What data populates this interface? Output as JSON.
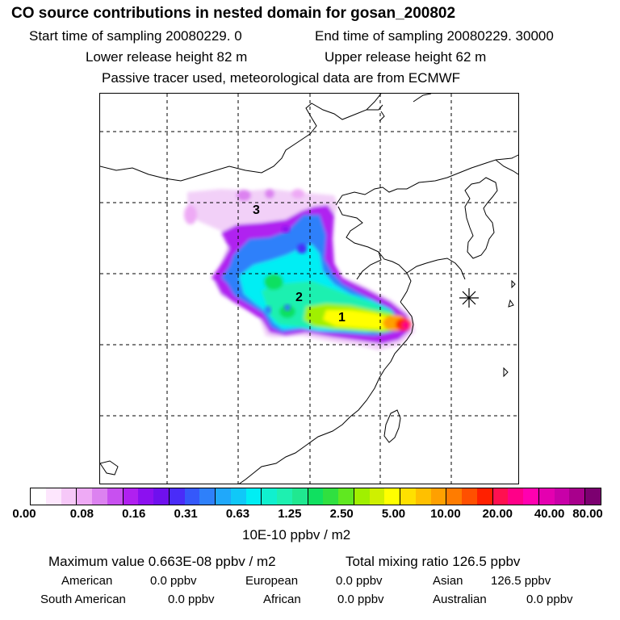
{
  "header": {
    "title": "CO  source contributions in nested domain for gosan_200802",
    "start_time": "Start time of sampling 20080229.     0",
    "end_time": "End time of sampling 20080229. 30000",
    "lower_release": "Lower release height   82 m",
    "upper_release": "Upper release height   62 m",
    "tracer_note": "Passive tracer used, meteorological data are from ECMWF"
  },
  "map": {
    "source_labels": [
      "1",
      "2",
      "3"
    ],
    "receptor_marker": "asterisk"
  },
  "colorbar": {
    "colors": [
      "#ffffff",
      "#fde6fd",
      "#f6c8f8",
      "#eeaaf5",
      "#dc82f0",
      "#c850f0",
      "#b020f0",
      "#8c10f0",
      "#6f10ee",
      "#4a2cf8",
      "#3558fa",
      "#2e80fa",
      "#20a8fa",
      "#10c8f8",
      "#00eef4",
      "#10f0cf",
      "#1ef0b0",
      "#20e890",
      "#10e060",
      "#30e040",
      "#60e820",
      "#a0f000",
      "#cff000",
      "#ffff00",
      "#ffe000",
      "#ffc000",
      "#ffa000",
      "#ff7c00",
      "#ff5000",
      "#ff2000",
      "#ff1050",
      "#ff0088",
      "#ff00b0",
      "#e400b0",
      "#c800a8",
      "#a8008c",
      "#7c0070"
    ],
    "tick_labels": [
      "0.00",
      "0.08",
      "0.16",
      "0.31",
      "0.63",
      "1.25",
      "2.50",
      "5.00",
      "10.00",
      "20.00",
      "40.00",
      "80.00"
    ],
    "units": "10E-10 ppbv / m2"
  },
  "summary": {
    "max_value": "Maximum value  0.663E-08 ppbv / m2",
    "total_mixing": "Total mixing ratio      126.5 ppbv",
    "regions": [
      {
        "name": "American",
        "value": "0.0 ppbv"
      },
      {
        "name": "European",
        "value": "0.0 ppbv"
      },
      {
        "name": "Asian",
        "value": "126.5 ppbv"
      },
      {
        "name": "South American",
        "value": "0.0 ppbv"
      },
      {
        "name": "African",
        "value": "0.0 ppbv"
      },
      {
        "name": "Australian",
        "value": "0.0 ppbv"
      }
    ]
  }
}
